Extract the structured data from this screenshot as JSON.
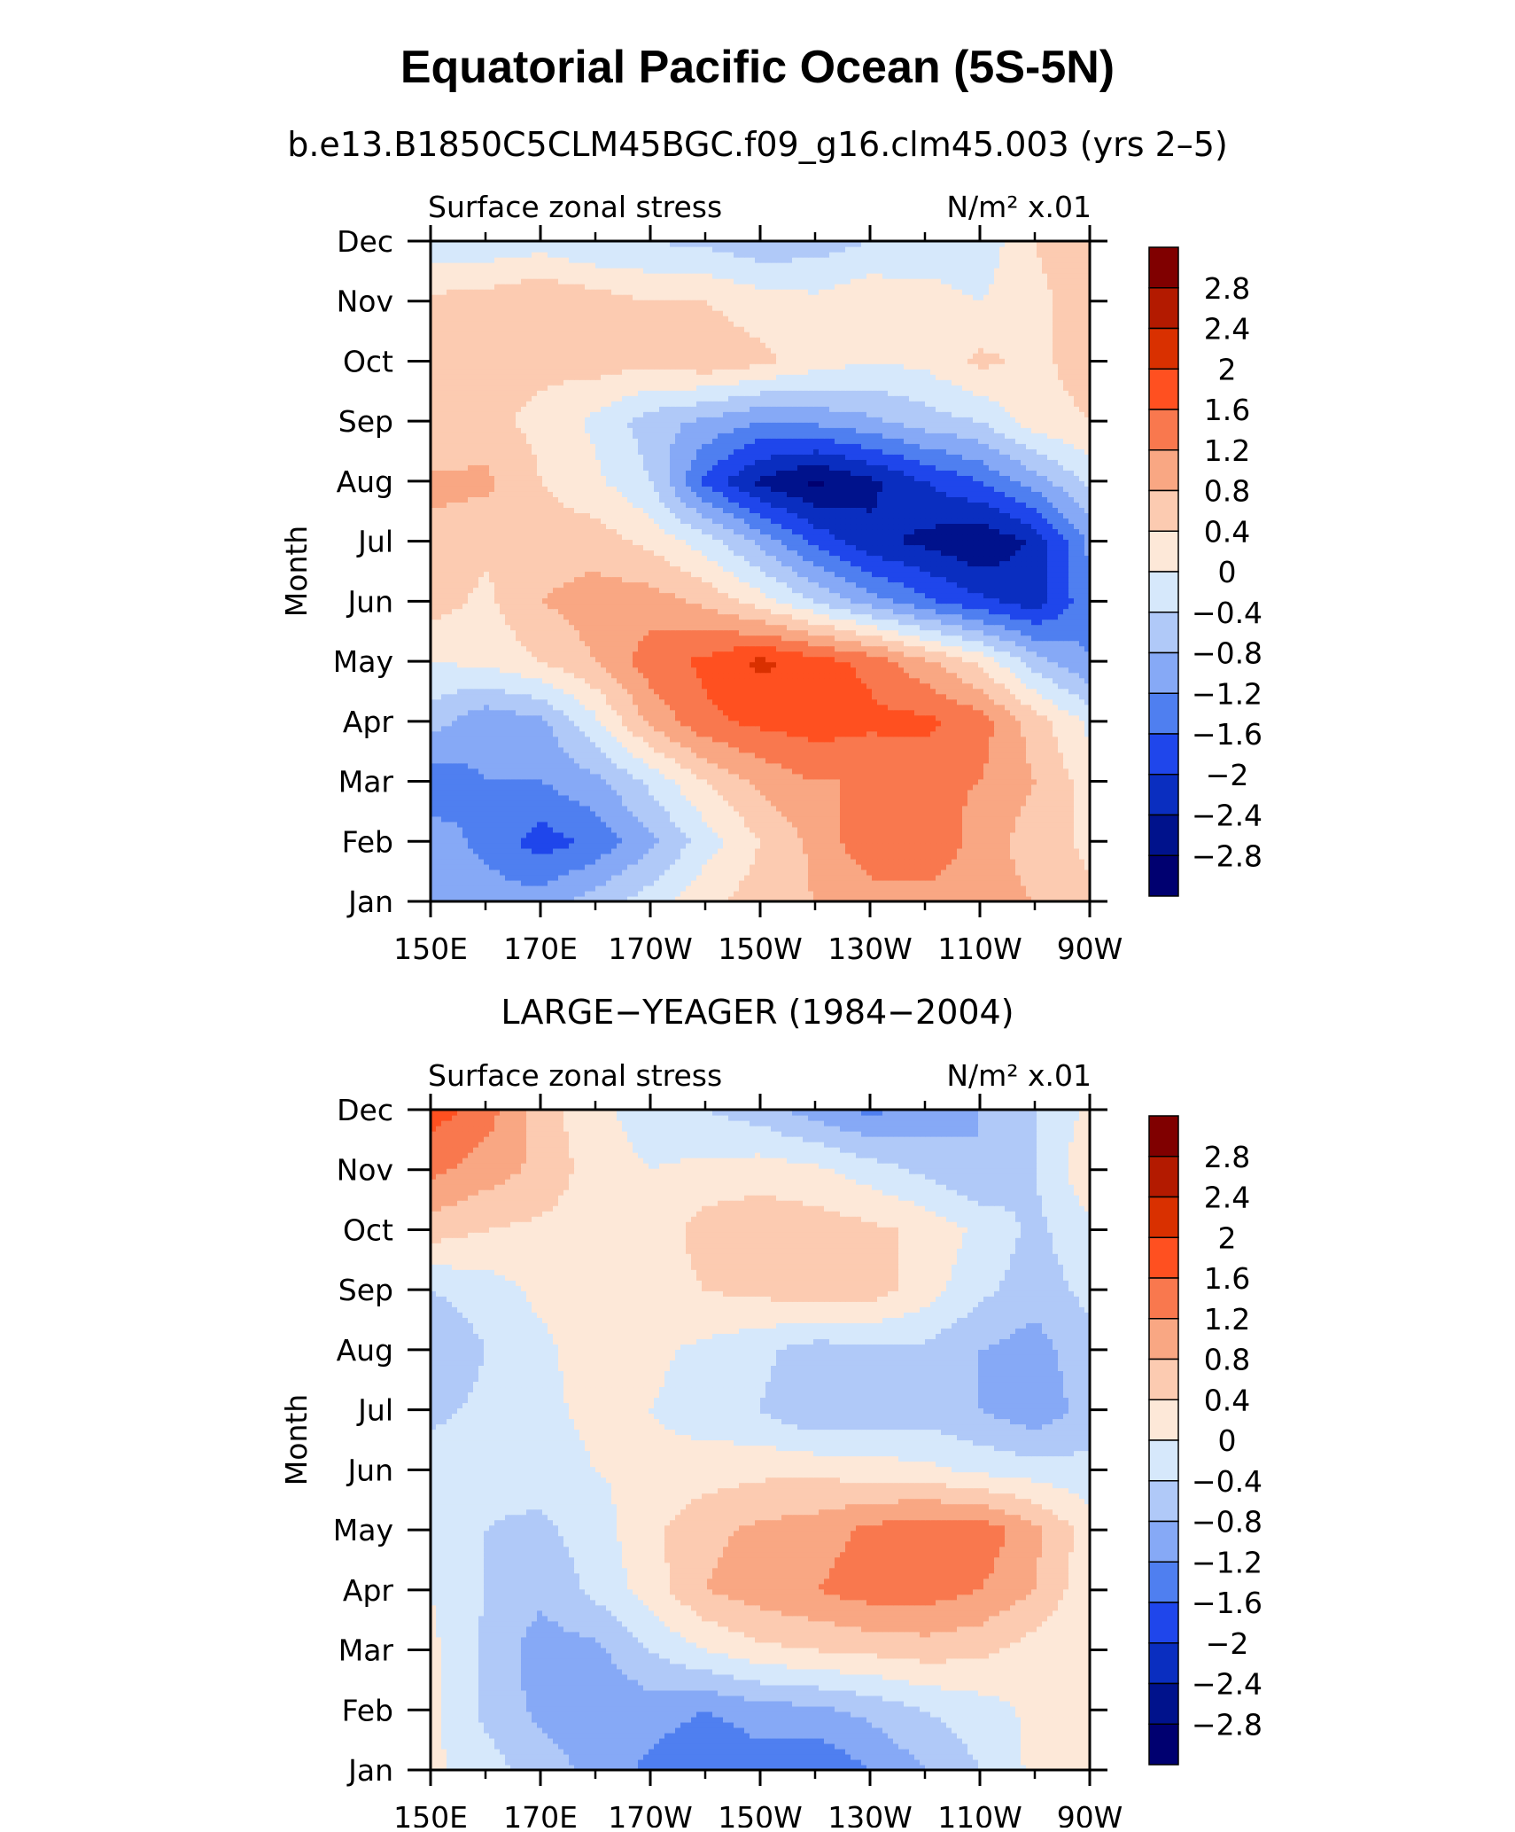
{
  "title": "Equatorial Pacific Ocean (5S-5N)",
  "colorbar": {
    "labels": [
      "2.8",
      "2.4",
      "2",
      "1.6",
      "1.2",
      "0.8",
      "0.4",
      "0",
      "−0.4",
      "−0.8",
      "−1.2",
      "−1.6",
      "−2",
      "−2.4",
      "−2.8"
    ],
    "levels": [
      2.8,
      2.4,
      2.0,
      1.6,
      1.2,
      0.8,
      0.4,
      0.0,
      -0.4,
      -0.8,
      -1.2,
      -1.6,
      -2.0,
      -2.4,
      -2.8
    ],
    "colors": [
      "#800000",
      "#b31a00",
      "#d93000",
      "#ff5020",
      "#f9784e",
      "#f9a783",
      "#fccbb1",
      "#fde8d8",
      "#d6e8fb",
      "#b0c9f8",
      "#86a9f6",
      "#4f7ff0",
      "#1f46eb",
      "#0a2ec0",
      "#00128c",
      "#000070"
    ]
  },
  "chart_data": [
    {
      "type": "heatmap",
      "title": "b.e13.B1850C5CLM45BGC.f09_g16.clm45.003 (yrs 2–5)",
      "left_string": "Surface zonal stress",
      "right_string": "N/m² x.01",
      "xlabel": "",
      "ylabel": "Month",
      "x_ticks": [
        "150E",
        "170E",
        "170W",
        "150W",
        "130W",
        "110W",
        "90W"
      ],
      "y_ticks": [
        "Jan",
        "Feb",
        "Mar",
        "Apr",
        "May",
        "Jun",
        "Jul",
        "Aug",
        "Sep",
        "Oct",
        "Nov",
        "Dec"
      ],
      "x_range": [
        "150E",
        "90W"
      ],
      "y_range": [
        "Jan",
        "Dec"
      ],
      "x": [
        150,
        160,
        170,
        180,
        190,
        200,
        210,
        220,
        230,
        240,
        250,
        260,
        270
      ],
      "y": [
        "Jan",
        "Feb",
        "Mar",
        "Apr",
        "May",
        "Jun",
        "Jul",
        "Aug",
        "Sep",
        "Oct",
        "Nov",
        "Dec"
      ],
      "values": [
        [
          -0.9,
          -1.0,
          -1.0,
          -0.6,
          -0.2,
          0.3,
          0.6,
          0.8,
          1.0,
          1.0,
          1.0,
          0.8,
          0.5
        ],
        [
          -1.0,
          -1.3,
          -1.8,
          -1.5,
          -0.9,
          -0.2,
          0.4,
          0.9,
          1.5,
          1.6,
          1.0,
          0.6,
          0.3
        ],
        [
          -1.5,
          -1.2,
          -1.2,
          -0.9,
          -0.3,
          0.4,
          0.9,
          1.2,
          1.2,
          1.3,
          1.2,
          0.8,
          0.2
        ],
        [
          -0.6,
          -1.1,
          -0.9,
          -0.1,
          0.9,
          1.5,
          1.7,
          1.8,
          1.7,
          1.7,
          1.4,
          0.6,
          -0.1
        ],
        [
          0.0,
          0.1,
          0.4,
          0.8,
          1.4,
          1.7,
          2.1,
          1.8,
          1.5,
          0.9,
          0.3,
          -0.6,
          -1.2
        ],
        [
          0.6,
          0.3,
          0.8,
          1.0,
          1.0,
          0.7,
          0.2,
          -0.4,
          -1.0,
          -1.5,
          -1.9,
          -2.2,
          -1.3
        ],
        [
          0.7,
          0.5,
          0.6,
          0.6,
          0.3,
          -0.2,
          -0.9,
          -1.7,
          -2.3,
          -2.5,
          -2.8,
          -2.3,
          -1.1
        ],
        [
          0.9,
          0.9,
          0.4,
          0.1,
          -0.4,
          -1.7,
          -2.5,
          -2.9,
          -2.5,
          -2.0,
          -1.6,
          -1.0,
          -0.3
        ],
        [
          0.4,
          0.5,
          0.3,
          -0.1,
          -0.6,
          -0.9,
          -1.2,
          -1.1,
          -0.9,
          -0.6,
          -0.4,
          0.2,
          0.4
        ],
        [
          0.4,
          0.5,
          0.5,
          0.6,
          0.5,
          0.7,
          0.5,
          0.2,
          0.0,
          0.1,
          0.5,
          0.3,
          0.6
        ],
        [
          0.5,
          0.6,
          0.8,
          0.6,
          0.4,
          0.4,
          0.2,
          0.1,
          0.3,
          0.2,
          0.0,
          0.3,
          0.6
        ],
        [
          -0.3,
          -0.3,
          -0.2,
          -0.4,
          -0.4,
          -0.5,
          -0.7,
          -0.6,
          -0.4,
          -0.3,
          -0.3,
          0.4,
          0.7
        ]
      ]
    },
    {
      "type": "heatmap",
      "title": "LARGE−YEAGER (1984−2004)",
      "left_string": "Surface zonal stress",
      "right_string": "N/m² x.01",
      "xlabel": "",
      "ylabel": "Month",
      "x_ticks": [
        "150E",
        "170E",
        "170W",
        "150W",
        "130W",
        "110W",
        "90W"
      ],
      "y_ticks": [
        "Jan",
        "Feb",
        "Mar",
        "Apr",
        "May",
        "Jun",
        "Jul",
        "Aug",
        "Sep",
        "Oct",
        "Nov",
        "Dec"
      ],
      "x_range": [
        "150E",
        "90W"
      ],
      "y_range": [
        "Jan",
        "Dec"
      ],
      "x": [
        150,
        160,
        170,
        180,
        190,
        200,
        210,
        220,
        230,
        240,
        250,
        260,
        270
      ],
      "y": [
        "Jan",
        "Feb",
        "Mar",
        "Apr",
        "May",
        "Jun",
        "Jul",
        "Aug",
        "Sep",
        "Oct",
        "Nov",
        "Dec"
      ],
      "values": [
        [
          0.1,
          -0.2,
          -0.6,
          -0.9,
          -1.3,
          -1.6,
          -1.4,
          -1.6,
          -1.2,
          -0.8,
          -0.4,
          0.1,
          0.2
        ],
        [
          0.1,
          -0.5,
          -0.9,
          -1.1,
          -1.0,
          -1.2,
          -1.0,
          -0.9,
          -0.7,
          -0.4,
          -0.2,
          0.1,
          0.2
        ],
        [
          0.1,
          -0.5,
          -1.0,
          -0.9,
          -0.4,
          0.0,
          0.3,
          0.4,
          0.5,
          0.6,
          0.5,
          0.2,
          0.0
        ],
        [
          0.0,
          -0.4,
          -0.7,
          -0.3,
          0.2,
          0.8,
          1.0,
          1.2,
          1.4,
          1.4,
          1.2,
          0.8,
          0.1
        ],
        [
          -0.1,
          -0.4,
          -0.5,
          -0.2,
          0.3,
          0.7,
          0.9,
          1.0,
          1.3,
          1.5,
          1.5,
          0.9,
          0.2
        ],
        [
          -0.2,
          -0.3,
          -0.2,
          0.0,
          0.1,
          0.2,
          0.3,
          0.3,
          0.2,
          0.1,
          -0.1,
          -0.2,
          -0.3
        ],
        [
          -0.5,
          -0.3,
          -0.1,
          0.1,
          0.0,
          -0.2,
          -0.4,
          -0.8,
          -0.7,
          -0.6,
          -0.8,
          -1.1,
          -0.6
        ],
        [
          -0.8,
          -0.4,
          -0.1,
          0.2,
          0.1,
          -0.1,
          -0.3,
          -0.6,
          -0.5,
          -0.5,
          -0.8,
          -1.0,
          -0.5
        ],
        [
          -0.4,
          -0.2,
          0.1,
          0.2,
          0.2,
          0.4,
          0.5,
          0.7,
          0.6,
          0.2,
          -0.3,
          -0.6,
          -0.3
        ],
        [
          0.6,
          0.4,
          0.3,
          0.2,
          0.1,
          0.6,
          0.7,
          0.6,
          0.5,
          0.3,
          -0.1,
          -0.5,
          -0.1
        ],
        [
          1.3,
          1.0,
          0.7,
          0.2,
          0.0,
          0.1,
          0.2,
          0.1,
          -0.2,
          -0.5,
          -0.8,
          -0.4,
          0.3
        ],
        [
          1.8,
          1.4,
          0.6,
          0.1,
          -0.2,
          -0.4,
          -0.6,
          -1.0,
          -1.3,
          -1.0,
          -0.8,
          -0.4,
          0.1
        ]
      ]
    }
  ]
}
